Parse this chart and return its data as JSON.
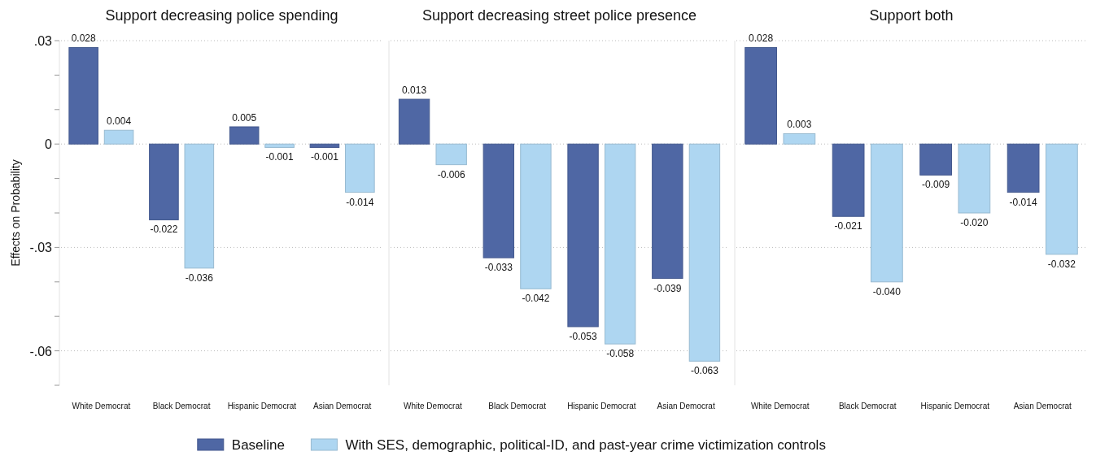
{
  "chart_data": [
    {
      "type": "bar",
      "title": "Support decreasing police spending",
      "ylabel": "Effects on Probability",
      "categories": [
        "White Democrat",
        "Black Democrat",
        "Hispanic Democrat",
        "Asian Democrat"
      ],
      "series": [
        {
          "name": "Baseline",
          "color": "#4f67a4",
          "values": [
            0.028,
            -0.022,
            0.005,
            -0.001
          ],
          "value_labels": [
            "0.028",
            "-0.022",
            "0.005",
            "-0.001"
          ]
        },
        {
          "name": "With SES, demographic, political-ID, and past-year crime victimization controls",
          "color": "#aed6f1",
          "values": [
            0.004,
            -0.036,
            -0.001,
            -0.014
          ],
          "value_labels": [
            "0.004",
            "-0.036",
            "-0.001",
            "-0.014"
          ]
        }
      ],
      "ylim": [
        -0.07,
        0.03
      ],
      "yticks": [
        {
          "value": 0.03,
          "label": ".03"
        },
        {
          "value": 0.02,
          "label": null
        },
        {
          "value": 0.01,
          "label": null
        },
        0,
        {
          "value": -0.01,
          "label": null
        },
        {
          "value": -0.02,
          "label": null
        },
        {
          "value": -0.03,
          "label": "-.03"
        },
        {
          "value": -0.04,
          "label": null
        },
        {
          "value": -0.05,
          "label": null
        },
        {
          "value": -0.06,
          "label": "-.06"
        },
        {
          "value": -0.07,
          "label": null
        }
      ],
      "grid": "y",
      "legend": "bottom"
    },
    {
      "type": "bar",
      "title": "Support decreasing street police presence",
      "categories": [
        "White Democrat",
        "Black Democrat",
        "Hispanic Democrat",
        "Asian Democrat"
      ],
      "series": [
        {
          "color": "#4f67a4",
          "values": [
            0.013,
            -0.033,
            -0.053,
            -0.039
          ],
          "value_labels": [
            "0.013",
            "-0.033",
            "-0.053",
            "-0.039"
          ]
        },
        {
          "color": "#aed6f1",
          "values": [
            -0.006,
            -0.042,
            -0.058,
            -0.063
          ],
          "value_labels": [
            "-0.006",
            "-0.042",
            "-0.058",
            "-0.063"
          ]
        }
      ],
      "ylim": [
        -0.07,
        0.03
      ],
      "yticks": [
        0.03,
        0,
        -0.03,
        -0.06
      ],
      "tick_labels": "x",
      "grid": "y"
    },
    {
      "type": "bar",
      "title": "Support both",
      "categories": [
        "White Democrat",
        "Black Democrat",
        "Hispanic Democrat",
        "Asian Democrat"
      ],
      "series": [
        {
          "color": "#4f67a4",
          "values": [
            0.028,
            -0.021,
            -0.009,
            -0.014
          ],
          "value_labels": [
            "0.028",
            "-0.021",
            "-0.009",
            "-0.014"
          ]
        },
        {
          "color": "#aed6f1",
          "values": [
            0.003,
            -0.04,
            -0.02,
            -0.032
          ],
          "value_labels": [
            "0.003",
            "-0.040",
            "-0.020",
            "-0.032"
          ]
        }
      ],
      "ylim": [
        -0.07,
        0.03
      ],
      "yticks": [
        0.03,
        0,
        -0.03,
        -0.06
      ],
      "tick_labels": "x",
      "grid": "y"
    }
  ]
}
